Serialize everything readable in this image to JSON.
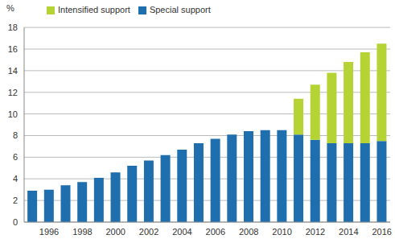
{
  "chart_data": {
    "type": "bar",
    "stacked": true,
    "y_label": "%",
    "categories": [
      null,
      "1996",
      null,
      "1998",
      null,
      "2000",
      null,
      "2002",
      null,
      "2004",
      null,
      "2006",
      null,
      "2008",
      null,
      "2010",
      null,
      "2012",
      null,
      "2014",
      null,
      "2016"
    ],
    "series": [
      {
        "name": "Special support",
        "color": "#1f6fae",
        "values": [
          2.9,
          3.0,
          3.4,
          3.7,
          4.1,
          4.6,
          5.2,
          5.7,
          6.2,
          6.7,
          7.3,
          7.7,
          8.1,
          8.4,
          8.5,
          8.5,
          8.1,
          7.6,
          7.3,
          7.3,
          7.3,
          7.5
        ]
      },
      {
        "name": "Intensified support",
        "color": "#b5d335",
        "values": [
          null,
          null,
          null,
          null,
          null,
          null,
          null,
          null,
          null,
          null,
          null,
          null,
          null,
          null,
          null,
          null,
          3.3,
          5.1,
          6.5,
          7.5,
          8.4,
          9.0
        ]
      }
    ],
    "ylim": [
      0,
      18
    ],
    "yticks": [
      0,
      2,
      4,
      6,
      8,
      10,
      12,
      14,
      16,
      18
    ],
    "grid": true,
    "legend": "top-left"
  }
}
